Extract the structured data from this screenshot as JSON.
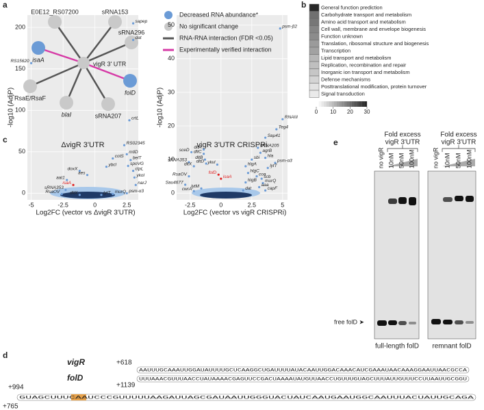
{
  "panels": {
    "a": {
      "label": "a",
      "center": "vigR 3' UTR",
      "nodes": [
        {
          "label": "E0E12_RS07200",
          "color": "#c9c9c9"
        },
        {
          "label": "sRNA153",
          "color": "#c9c9c9"
        },
        {
          "label": "sRNA296",
          "color": "#c9c9c9"
        },
        {
          "label": "isaA",
          "color": "#6b9bd6"
        },
        {
          "label": "folD",
          "color": "#6b9bd6"
        },
        {
          "label": "RsaE/RsaF",
          "color": "#c9c9c9"
        },
        {
          "label": "blaI",
          "color": "#c9c9c9"
        },
        {
          "label": "sRNA207",
          "color": "#c9c9c9"
        }
      ],
      "legend": [
        {
          "label": "Decreased RNA abundance*",
          "color": "#6b9bd6"
        },
        {
          "label": "No significant change",
          "color": "#c9c9c9"
        },
        {
          "label": "RNA-RNA interaction (FDR <0.05)",
          "color": "#555555"
        },
        {
          "label": "Experimentally verified interaction",
          "color": "#d63aa6"
        }
      ]
    },
    "b": {
      "label": "b",
      "categories": [
        "General function prediction",
        "Carbohydrate transport and metabolism",
        "Amino acid transport and metabolism",
        "Cell wall, membrane and envelope biogenesis",
        "Function unknown",
        "Translation, ribosomal structure and biogenesis",
        "Transcription",
        "Lipid transport and metabolism",
        "Replication, recombination and repair",
        "Inorganic ion transport and metabolism",
        "Defense mechanisms",
        "Posttranslational modification, protein turnover",
        "Signal transduction"
      ],
      "values": [
        30,
        20,
        19,
        17,
        16,
        14,
        13,
        10,
        9,
        8,
        6,
        4,
        3
      ],
      "range": [
        0,
        30
      ],
      "ticks": [
        0,
        10,
        20,
        30
      ]
    },
    "c": {
      "label": "c"
    },
    "d": {
      "label": "d",
      "strand1": "vigR",
      "pos1": "+618",
      "strand2": "folD",
      "pos2": "+1139",
      "pos3": "+994",
      "pos4": "+765",
      "seq1": "AAUUUGCAAAUUGGAUAUUUUGCUCAAGGCUGAUUUUAUACAAUUGGACAAACAUCGAAAUAACAAAGGAAUUAACGCCA",
      "seq2": "UUUAAACGUUUAACCUAUAAAACGAGUUCCGACUAAAAUAUGUUAACCUGUUUGUAGCUUUAUUGUUUCCUUAAUUGCGGU",
      "seq3": "GUAGCUUUCAAUCCCGUUUUUAAGAUUAGCGAUAAUUGGGUACUAUCAAUGAAUGGCAAUUUACUAUUGCAGA"
    },
    "e": {
      "label": "e",
      "header1": "Fold excess",
      "header2": "vigR 3'UTR",
      "lanes": [
        "no vigR",
        "10nM",
        "50nM",
        "100nM"
      ],
      "free": "free folD ➤",
      "gel1": "full-length folD",
      "gel2": "remnant folD"
    }
  },
  "chart_data": [
    {
      "type": "scatter",
      "title": "ΔvigR 3'UTR",
      "x_label": "Log2FC (vector vs ΔvigR 3'UTR)",
      "y_label": "-log10 (AdjP)",
      "xlim": [
        -5.3,
        3.4
      ],
      "ylim": [
        -8,
        215
      ],
      "xticks": [
        -5.0,
        -2.5,
        0.0,
        2.5
      ],
      "yticks": [
        0,
        50,
        100,
        150,
        200
      ],
      "grid": true,
      "points": [
        {
          "label": "sapep",
          "x": 3.0,
          "y": 205,
          "color": "#6b9bd6"
        },
        {
          "label": "dat",
          "x": 3.0,
          "y": 185,
          "color": "#6b9bd6"
        },
        {
          "label": "RS15620",
          "x": -5.0,
          "y": 157,
          "color": "#6b9bd6"
        },
        {
          "label": "RS02345",
          "x": 2.3,
          "y": 58,
          "color": "#6b9bd6"
        },
        {
          "label": "crtL",
          "x": 2.7,
          "y": 88,
          "color": "#6b9bd6"
        },
        {
          "label": "mtlD",
          "x": 2.5,
          "y": 47,
          "color": "#6b9bd6"
        },
        {
          "label": "belT",
          "x": 2.8,
          "y": 40,
          "color": "#6b9bd6"
        },
        {
          "label": "cotS",
          "x": 1.4,
          "y": 42,
          "color": "#6b9bd6"
        },
        {
          "label": "spoVG",
          "x": 2.6,
          "y": 33,
          "color": "#6b9bd6"
        },
        {
          "label": "ybcl",
          "x": 0.9,
          "y": 32,
          "color": "#6b9bd6"
        },
        {
          "label": "clpL",
          "x": 3.0,
          "y": 27,
          "color": "#6b9bd6"
        },
        {
          "label": "doxX",
          "x": -1.2,
          "y": 27,
          "color": "#6b9bd6"
        },
        {
          "label": "aes",
          "x": -0.6,
          "y": 22,
          "color": "#6b9bd6"
        },
        {
          "label": "aat1",
          "x": -2.2,
          "y": 16,
          "color": "#6b9bd6"
        },
        {
          "label": "isaA",
          "x": -1.7,
          "y": 10,
          "color": "#e02020"
        },
        {
          "label": "ykol",
          "x": 3.1,
          "y": 19,
          "color": "#6b9bd6"
        },
        {
          "label": "narJ",
          "x": 3.2,
          "y": 10,
          "color": "#6b9bd6"
        },
        {
          "label": "sRNA353",
          "x": -2.3,
          "y": 4,
          "color": "#6b9bd6"
        },
        {
          "label": "RsaOV",
          "x": -2.6,
          "y": -1,
          "color": "#6b9bd6"
        },
        {
          "label": "dltX",
          "x": -1.2,
          "y": -2,
          "color": "#6b9bd6"
        },
        {
          "label": "lytT",
          "x": 0.5,
          "y": -2,
          "color": "#6b9bd6"
        },
        {
          "label": "murQ",
          "x": 1.4,
          "y": -1,
          "color": "#6b9bd6"
        },
        {
          "label": "psm-α3",
          "x": 2.5,
          "y": 0,
          "color": "#6b9bd6"
        }
      ]
    },
    {
      "type": "scatter",
      "title": "vigR 3'UTR CRISPRi",
      "x_label": "Log2FC (vector vs vigR CRISPRi)",
      "y_label": "-log10 (AdjP)",
      "xlim": [
        -3.6,
        5.4
      ],
      "ylim": [
        -2,
        53
      ],
      "xticks": [
        -2.5,
        0.0,
        2.5,
        5.0
      ],
      "yticks": [
        0,
        10,
        20,
        30,
        40,
        50
      ],
      "grid": true,
      "points": [
        {
          "label": "psm-β2",
          "x": 4.8,
          "y": 49,
          "color": "#6b9bd6"
        },
        {
          "label": "RNAIII",
          "x": 5.0,
          "y": 22,
          "color": "#6b9bd6"
        },
        {
          "label": "Teg4",
          "x": 4.5,
          "y": 19,
          "color": "#6b9bd6"
        },
        {
          "label": "Saµ41",
          "x": 3.6,
          "y": 16.5,
          "color": "#6b9bd6"
        },
        {
          "label": "sRNA205",
          "x": 3.0,
          "y": 13.5,
          "color": "#6b9bd6"
        },
        {
          "label": "agrB",
          "x": 3.2,
          "y": 12,
          "color": "#6b9bd6"
        },
        {
          "label": "hla",
          "x": 3.6,
          "y": 10.5,
          "color": "#6b9bd6"
        },
        {
          "label": "sbi",
          "x": 2.5,
          "y": 10,
          "color": "#6b9bd6"
        },
        {
          "label": "psm-α3",
          "x": 4.4,
          "y": 9,
          "color": "#6b9bd6"
        },
        {
          "label": "hlgA",
          "x": 2.0,
          "y": 8,
          "color": "#6b9bd6"
        },
        {
          "label": "lytT",
          "x": 3.8,
          "y": 7.5,
          "color": "#6b9bd6"
        },
        {
          "label": "hlgC",
          "x": 2.2,
          "y": 6,
          "color": "#6b9bd6"
        },
        {
          "label": "coa",
          "x": 2.9,
          "y": 5,
          "color": "#6b9bd6"
        },
        {
          "label": "scb",
          "x": 3.3,
          "y": 4.3,
          "color": "#6b9bd6"
        },
        {
          "label": "hlgB",
          "x": 2.0,
          "y": 3.2,
          "color": "#6b9bd6"
        },
        {
          "label": "murQ",
          "x": 3.4,
          "y": 3,
          "color": "#6b9bd6"
        },
        {
          "label": "aaa",
          "x": 3.1,
          "y": 1.8,
          "color": "#6b9bd6"
        },
        {
          "label": "capF",
          "x": 3.6,
          "y": 0.8,
          "color": "#6b9bd6"
        },
        {
          "label": "dat",
          "x": 1.8,
          "y": 0.8,
          "color": "#6b9bd6"
        },
        {
          "label": "dltA",
          "x": -1.4,
          "y": 13,
          "color": "#6b9bd6"
        },
        {
          "label": "dltC",
          "x": -1.4,
          "y": 11.7,
          "color": "#6b9bd6"
        },
        {
          "label": "dltB",
          "x": -1.3,
          "y": 10,
          "color": "#6b9bd6"
        },
        {
          "label": "dltD",
          "x": -1.2,
          "y": 8.8,
          "color": "#6b9bd6"
        },
        {
          "label": "ykvl",
          "x": -0.3,
          "y": 8.5,
          "color": "#6b9bd6"
        },
        {
          "label": "sceD",
          "x": -2.4,
          "y": 12.2,
          "color": "#6b9bd6"
        },
        {
          "label": "sRNA353",
          "x": -2.6,
          "y": 9.2,
          "color": "#6b9bd6"
        },
        {
          "label": "dltX",
          "x": -2.2,
          "y": 8,
          "color": "#6b9bd6"
        },
        {
          "label": "RsaOV",
          "x": -2.6,
          "y": 5,
          "color": "#6b9bd6"
        },
        {
          "label": "folD",
          "x": -0.2,
          "y": 5.5,
          "color": "#e02020"
        },
        {
          "label": "isaA",
          "x": 0.0,
          "y": 4.3,
          "color": "#e02020"
        },
        {
          "label": "Sau4677",
          "x": -2.9,
          "y": 2.5,
          "color": "#6b9bd6"
        },
        {
          "label": "lytM",
          "x": -1.6,
          "y": 1.4,
          "color": "#6b9bd6"
        },
        {
          "label": "cwrA",
          "x": -2.2,
          "y": 0.6,
          "color": "#6b9bd6"
        }
      ]
    }
  ]
}
